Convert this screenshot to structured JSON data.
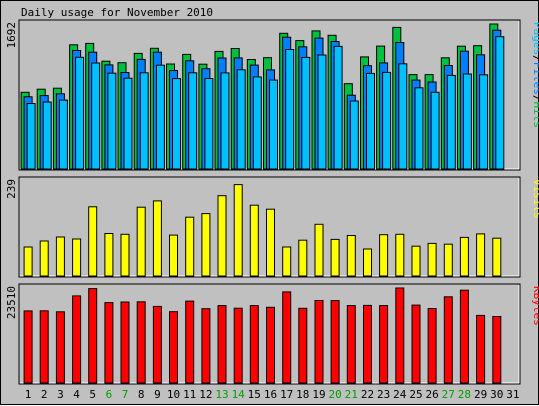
{
  "chart_data": {
    "type": "bar",
    "title": "Daily usage for November 2010",
    "days": [
      "1",
      "2",
      "3",
      "4",
      "5",
      "6",
      "7",
      "8",
      "9",
      "10",
      "11",
      "12",
      "13",
      "14",
      "15",
      "16",
      "17",
      "18",
      "19",
      "20",
      "21",
      "22",
      "23",
      "24",
      "25",
      "26",
      "27",
      "28",
      "29",
      "30",
      "31"
    ],
    "weekend_days": [
      "6",
      "7",
      "13",
      "14",
      "20",
      "21",
      "27",
      "28"
    ],
    "panels": [
      {
        "name": "hits",
        "ylabel_max": "1692",
        "ymax": 1692,
        "legend": [
          {
            "text": "Pages",
            "color": "#00c0ff"
          },
          {
            "text": "/",
            "color": "#000000"
          },
          {
            "text": "Files",
            "color": "#0080ff"
          },
          {
            "text": "/",
            "color": "#000000"
          },
          {
            "text": "Hits",
            "color": "#00c040"
          }
        ],
        "series": [
          {
            "name": "Hits",
            "color": "#00c040",
            "values": [
              895,
              931,
              943,
              1449,
              1466,
              1258,
              1240,
              1349,
              1409,
              1225,
              1337,
              1223,
              1372,
              1406,
              1278,
              1299,
              1584,
              1498,
              1612,
              1560,
              995,
              1308,
              1434,
              1652,
              1102,
              1102,
              1298,
              1433,
              1439,
              1692,
              0
            ]
          },
          {
            "name": "Files",
            "color": "#0080ff",
            "values": [
              843,
              856,
              878,
              1383,
              1363,
              1215,
              1126,
              1279,
              1363,
              1149,
              1262,
              1170,
              1295,
              1297,
              1212,
              1156,
              1538,
              1426,
              1528,
              1488,
              861,
              1205,
              1238,
              1476,
              1037,
              1015,
              1208,
              1375,
              1333,
              1620,
              0
            ]
          },
          {
            "name": "Pages",
            "color": "#00c0ff",
            "values": [
              764,
              782,
              804,
              1304,
              1237,
              1118,
              1060,
              1122,
              1211,
              1055,
              1122,
              1056,
              1121,
              1158,
              1075,
              1037,
              1394,
              1302,
              1330,
              1431,
              793,
              1116,
              1127,
              1227,
              948,
              895,
              1092,
              1109,
              1099,
              1544,
              0
            ]
          }
        ]
      },
      {
        "name": "visits",
        "ylabel_max": "239",
        "ymax": 239,
        "legend": [
          {
            "text": "Visits",
            "color": "#ffff00"
          }
        ],
        "series": [
          {
            "name": "Visits",
            "color": "#ffff00",
            "values": [
              73,
              88,
              98,
              93,
              174,
              107,
              105,
              173,
              189,
              103,
              148,
              157,
              202,
              230,
              178,
              168,
              73,
              90,
              130,
              92,
              102,
              68,
              104,
              105,
              75,
              82,
              80,
              97,
              106,
              95,
              0
            ]
          }
        ]
      },
      {
        "name": "kbytes",
        "ylabel_max": "23510",
        "ymax": 23510,
        "legend": [
          {
            "text": "KBytes",
            "color": "#ff0000"
          }
        ],
        "series": [
          {
            "name": "KBytes",
            "color": "#ff0000",
            "values": [
              17840,
              17865,
              17621,
              21566,
              23362,
              19905,
              20051,
              20101,
              18964,
              17647,
              20280,
              18380,
              19158,
              18499,
              19145,
              18745,
              22557,
              18478,
              20422,
              20387,
              19143,
              19196,
              19153,
              23510,
              19266,
              18432,
              21342,
              22963,
              16740,
              16446,
              0
            ]
          }
        ]
      }
    ]
  }
}
